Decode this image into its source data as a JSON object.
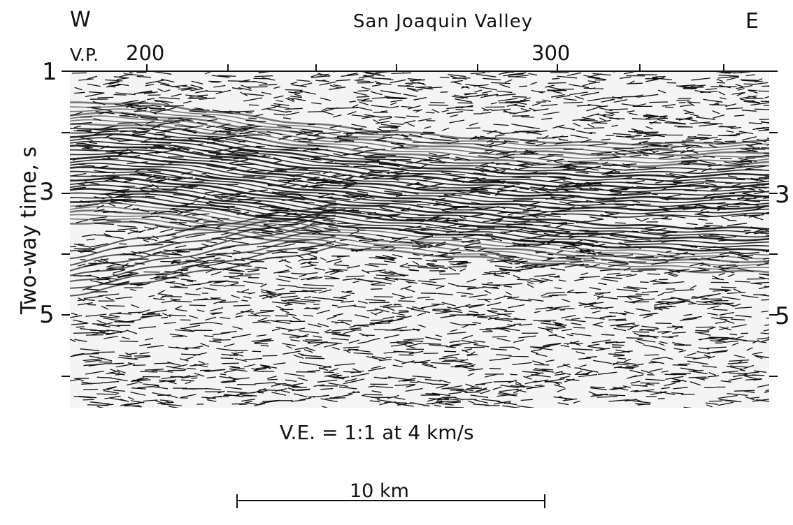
{
  "figure": {
    "title": "San Joaquin Valley",
    "west_label": "W",
    "east_label": "E",
    "vp_prefix": "V.P.",
    "vp_labels": [
      "200",
      "300"
    ],
    "yaxis_label": "Two-way time, s",
    "left_ticks": [
      "1",
      "3",
      "5"
    ],
    "right_ticks": [
      "3",
      "5"
    ],
    "vertical_exaggeration": "V.E. = 1:1 at 4 km/s",
    "scale_bar_label": "10 km"
  },
  "colors": {
    "ink": "#111111",
    "background": "#ffffff"
  }
}
